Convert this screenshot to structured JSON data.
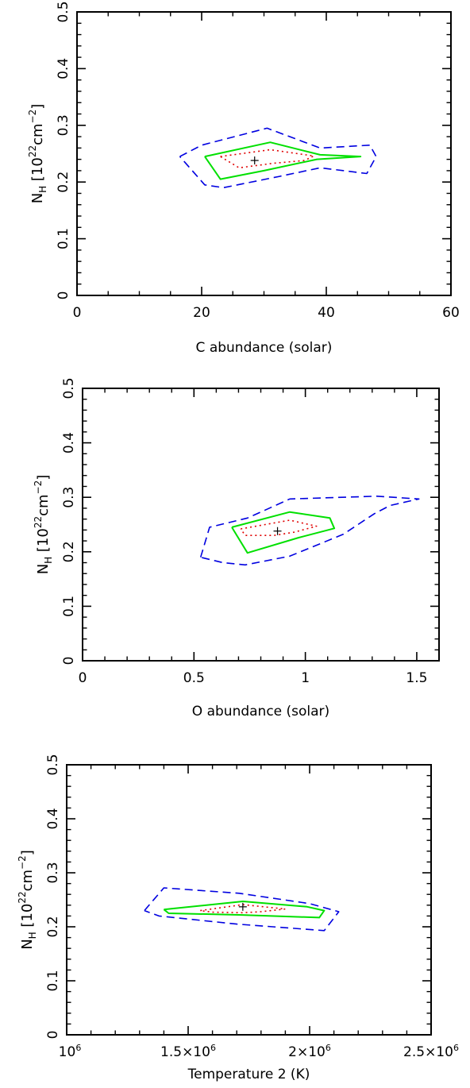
{
  "chart_data": [
    {
      "type": "contour",
      "xlabel": "C abundance (solar)",
      "ylabel_main": "N",
      "ylabel_sub": "H",
      "ylabel_rest": " [10",
      "ylabel_exp": "22",
      "ylabel_unit": "cm",
      "ylabel_unit_exp": "−2",
      "ylabel_close": "]",
      "xlim": [
        0,
        60
      ],
      "ylim": [
        0,
        0.5
      ],
      "x_major": [
        0,
        20,
        40,
        60
      ],
      "x_minor": [
        5,
        10,
        15,
        25,
        30,
        35,
        45,
        50,
        55
      ],
      "y_major": [
        0,
        0.1,
        0.2,
        0.3,
        0.4,
        0.5
      ],
      "y_minor": [
        0.02,
        0.04,
        0.06,
        0.08,
        0.12,
        0.14,
        0.16,
        0.18,
        0.22,
        0.24,
        0.26,
        0.28,
        0.32,
        0.34,
        0.36,
        0.38,
        0.42,
        0.44,
        0.46,
        0.48
      ],
      "x_tick_labels": [
        "0",
        "20",
        "40",
        "60"
      ],
      "y_tick_labels": [
        "0",
        "0.1",
        "0.2",
        "0.3",
        "0.4",
        "0.5"
      ],
      "best_fit": [
        28.5,
        0.238
      ],
      "contours": [
        {
          "level": "outer",
          "style": "dashed",
          "color": "#0000e0",
          "points": [
            [
              16.5,
              0.245
            ],
            [
              20.0,
              0.265
            ],
            [
              30.5,
              0.295
            ],
            [
              39.0,
              0.26
            ],
            [
              47.0,
              0.265
            ],
            [
              48.0,
              0.245
            ],
            [
              46.5,
              0.215
            ],
            [
              39.0,
              0.225
            ],
            [
              32.5,
              0.21
            ],
            [
              23.5,
              0.19
            ],
            [
              20.5,
              0.195
            ],
            [
              16.5,
              0.245
            ]
          ]
        },
        {
          "level": "mid",
          "style": "solid",
          "color": "#00e000",
          "points": [
            [
              20.5,
              0.245
            ],
            [
              31.0,
              0.27
            ],
            [
              39.0,
              0.248
            ],
            [
              45.5,
              0.245
            ],
            [
              38.5,
              0.24
            ],
            [
              30.0,
              0.22
            ],
            [
              23.0,
              0.205
            ],
            [
              20.5,
              0.245
            ]
          ]
        },
        {
          "level": "inner",
          "style": "dotted",
          "color": "#e00000",
          "points": [
            [
              23.0,
              0.245
            ],
            [
              31.0,
              0.257
            ],
            [
              38.0,
              0.246
            ],
            [
              36.5,
              0.238
            ],
            [
              31.5,
              0.233
            ],
            [
              26.0,
              0.225
            ],
            [
              23.0,
              0.245
            ]
          ]
        }
      ]
    },
    {
      "type": "contour",
      "xlabel": "O abundance (solar)",
      "ylabel_main": "N",
      "ylabel_sub": "H",
      "ylabel_rest": " [10",
      "ylabel_exp": "22",
      "ylabel_unit": "cm",
      "ylabel_unit_exp": "−2",
      "ylabel_close": "]",
      "xlim": [
        0,
        1.6
      ],
      "ylim": [
        0,
        0.5
      ],
      "x_major": [
        0,
        0.5,
        1,
        1.5
      ],
      "x_minor": [
        0.1,
        0.2,
        0.3,
        0.4,
        0.6,
        0.7,
        0.8,
        0.9,
        1.1,
        1.2,
        1.3,
        1.4
      ],
      "y_major": [
        0,
        0.1,
        0.2,
        0.3,
        0.4,
        0.5
      ],
      "y_minor": [
        0.02,
        0.04,
        0.06,
        0.08,
        0.12,
        0.14,
        0.16,
        0.18,
        0.22,
        0.24,
        0.26,
        0.28,
        0.32,
        0.34,
        0.36,
        0.38,
        0.42,
        0.44,
        0.46,
        0.48
      ],
      "x_tick_labels": [
        "0",
        "0.5",
        "1",
        "1.5"
      ],
      "y_tick_labels": [
        "0",
        "0.1",
        "0.2",
        "0.3",
        "0.4",
        "0.5"
      ],
      "best_fit": [
        0.875,
        0.238
      ],
      "contours": [
        {
          "level": "outer",
          "style": "dashed",
          "color": "#0000e0",
          "points": [
            [
              0.53,
              0.19
            ],
            [
              0.57,
              0.245
            ],
            [
              0.74,
              0.262
            ],
            [
              0.93,
              0.297
            ],
            [
              1.32,
              0.302
            ],
            [
              1.51,
              0.297
            ],
            [
              1.38,
              0.285
            ],
            [
              1.31,
              0.27
            ],
            [
              1.17,
              0.232
            ],
            [
              0.93,
              0.192
            ],
            [
              0.73,
              0.176
            ],
            [
              0.63,
              0.18
            ],
            [
              0.53,
              0.19
            ]
          ]
        },
        {
          "level": "mid",
          "style": "solid",
          "color": "#00e000",
          "points": [
            [
              0.67,
              0.245
            ],
            [
              0.93,
              0.273
            ],
            [
              1.11,
              0.262
            ],
            [
              1.13,
              0.243
            ],
            [
              0.97,
              0.226
            ],
            [
              0.74,
              0.198
            ],
            [
              0.67,
              0.245
            ]
          ]
        },
        {
          "level": "inner",
          "style": "dotted",
          "color": "#e00000",
          "points": [
            [
              0.71,
              0.242
            ],
            [
              0.93,
              0.258
            ],
            [
              1.05,
              0.247
            ],
            [
              0.95,
              0.236
            ],
            [
              0.86,
              0.23
            ],
            [
              0.73,
              0.23
            ],
            [
              0.71,
              0.242
            ]
          ]
        }
      ]
    },
    {
      "type": "contour",
      "xlabel": "Temperature 2 (K)",
      "ylabel_main": "N",
      "ylabel_sub": "H",
      "ylabel_rest": " [10",
      "ylabel_exp": "22",
      "ylabel_unit": "cm",
      "ylabel_unit_exp": "−2",
      "ylabel_close": "]",
      "xlim": [
        1000000,
        2500000
      ],
      "ylim": [
        0,
        0.5
      ],
      "x_major": [
        1000000,
        1500000,
        2000000,
        2500000
      ],
      "x_minor": [
        1100000,
        1200000,
        1300000,
        1400000,
        1600000,
        1700000,
        1800000,
        1900000,
        2100000,
        2200000,
        2300000,
        2400000
      ],
      "x_tick_labels": [
        {
          "base": "10",
          "exp": "6"
        },
        {
          "base": "1.5×10",
          "exp": "6"
        },
        {
          "base": "2×10",
          "exp": "6"
        },
        {
          "base": "2.5×10",
          "exp": "6"
        }
      ],
      "y_major": [
        0,
        0.1,
        0.2,
        0.3,
        0.4,
        0.5
      ],
      "y_minor": [
        0.02,
        0.04,
        0.06,
        0.08,
        0.12,
        0.14,
        0.16,
        0.18,
        0.22,
        0.24,
        0.26,
        0.28,
        0.32,
        0.34,
        0.36,
        0.38,
        0.42,
        0.44,
        0.46,
        0.48
      ],
      "y_tick_labels": [
        "0",
        "0.1",
        "0.2",
        "0.3",
        "0.4",
        "0.5"
      ],
      "best_fit": [
        1725000,
        0.237
      ],
      "contours": [
        {
          "level": "outer",
          "style": "dashed",
          "color": "#0000e0",
          "points": [
            [
              1320000,
              0.23
            ],
            [
              1400000,
              0.272
            ],
            [
              1710000,
              0.262
            ],
            [
              2000000,
              0.243
            ],
            [
              2120000,
              0.228
            ],
            [
              2060000,
              0.193
            ],
            [
              1700000,
              0.205
            ],
            [
              1380000,
              0.22
            ],
            [
              1320000,
              0.23
            ]
          ]
        },
        {
          "level": "mid",
          "style": "solid",
          "color": "#00e000",
          "points": [
            [
              1400000,
              0.232
            ],
            [
              1725000,
              0.247
            ],
            [
              1990000,
              0.237
            ],
            [
              2060000,
              0.23
            ],
            [
              2040000,
              0.217
            ],
            [
              1710000,
              0.222
            ],
            [
              1420000,
              0.225
            ],
            [
              1400000,
              0.232
            ]
          ]
        },
        {
          "level": "inner",
          "style": "dotted",
          "color": "#e00000",
          "points": [
            [
              1550000,
              0.23
            ],
            [
              1725000,
              0.241
            ],
            [
              1900000,
              0.233
            ],
            [
              1800000,
              0.228
            ],
            [
              1725000,
              0.226
            ],
            [
              1600000,
              0.227
            ],
            [
              1550000,
              0.23
            ]
          ]
        }
      ]
    }
  ]
}
